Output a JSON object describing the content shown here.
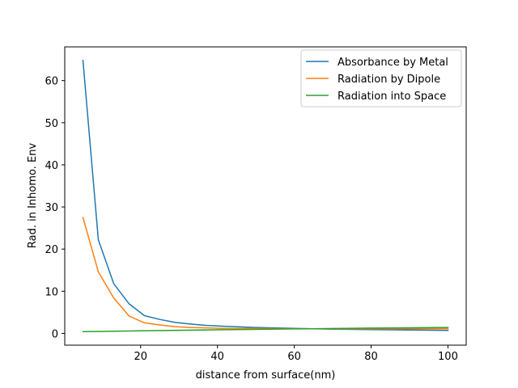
{
  "chart_data": {
    "type": "line",
    "title": "",
    "xlabel": "distance from surface(nm)",
    "ylabel": "Rad. in Inhomo. Env",
    "xlim": [
      0.25,
      104.75
    ],
    "ylim": [
      -2.8,
      68.0
    ],
    "xticks": [
      20,
      40,
      60,
      80,
      100
    ],
    "yticks": [
      0,
      10,
      20,
      30,
      40,
      50,
      60
    ],
    "xtick_labels": [
      "20",
      "40",
      "60",
      "80",
      "100"
    ],
    "ytick_labels": [
      "0",
      "10",
      "20",
      "30",
      "40",
      "50",
      "60"
    ],
    "grid": false,
    "legend_position": "top-right",
    "series": [
      {
        "name": "Absorbance by Metal",
        "color": "#1f77b4",
        "x": [
          5,
          9,
          13,
          17,
          21,
          25,
          29,
          33,
          37,
          41,
          50,
          60,
          70,
          80,
          90,
          100
        ],
        "y": [
          64.8,
          22.2,
          11.8,
          7.0,
          4.2,
          3.3,
          2.6,
          2.2,
          1.9,
          1.7,
          1.4,
          1.2,
          1.0,
          0.9,
          0.8,
          0.7
        ]
      },
      {
        "name": "Radiation by Dipole",
        "color": "#ff7f0e",
        "x": [
          5,
          9,
          13,
          17,
          21,
          25,
          29,
          33,
          37,
          41,
          50,
          60,
          70,
          80,
          90,
          100
        ],
        "y": [
          27.5,
          14.6,
          8.4,
          4.1,
          2.5,
          2.0,
          1.6,
          1.4,
          1.3,
          1.2,
          1.15,
          1.1,
          1.1,
          1.1,
          1.1,
          1.1
        ]
      },
      {
        "name": "Radiation into Space",
        "color": "#2ca02c",
        "x": [
          5,
          20,
          40,
          60,
          80,
          100
        ],
        "y": [
          0.4,
          0.6,
          0.85,
          1.05,
          1.25,
          1.4
        ]
      }
    ]
  }
}
